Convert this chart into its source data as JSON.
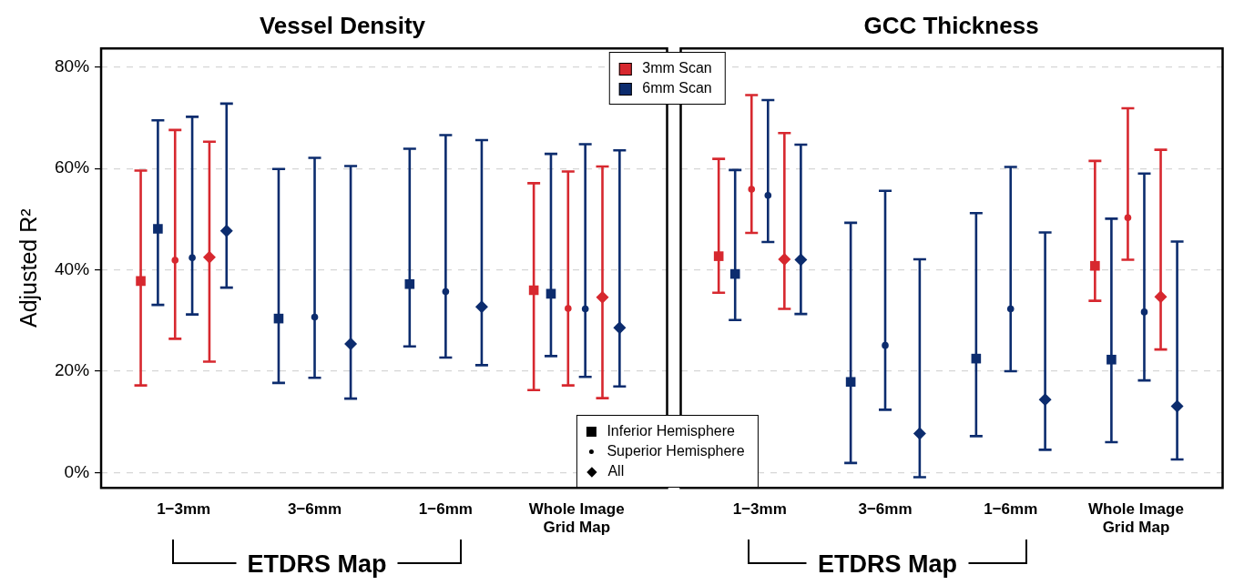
{
  "chart_data": [
    {
      "type": "scatter",
      "title": "Vessel Density",
      "ylabel": "Adjusted R²",
      "xlabel": "ETDRS Map",
      "categories": [
        "1−3mm",
        "3−6mm",
        "1−6mm",
        "Whole Image Grid Map"
      ],
      "ylim": [
        -3,
        83.7
      ],
      "yticks": [
        {
          "value": 0,
          "label": "0%"
        },
        {
          "value": 20,
          "label": "20%"
        },
        {
          "value": 40,
          "label": "40%"
        },
        {
          "value": 60,
          "label": "60%"
        },
        {
          "value": 80,
          "label": "80%"
        }
      ],
      "grid": "y",
      "legend": "top right",
      "annotations": [
        "Inferior Hemisphere",
        "Superior Hemisphere",
        "All"
      ],
      "series": [
        {
          "name": "3mm Scan",
          "color": "#d7282f",
          "marker": "square",
          "values": [
            37.8,
            null,
            null,
            36.0
          ],
          "errors": [
            [
              17.2,
              59.6
            ],
            null,
            null,
            [
              16.3,
              57.1
            ]
          ]
        },
        {
          "name": "6mm Scan",
          "color": "#0c2c6e",
          "marker": "square",
          "values": [
            48.1,
            30.4,
            37.2,
            35.3
          ],
          "errors": [
            [
              33.1,
              69.5
            ],
            [
              17.7,
              59.9
            ],
            [
              24.9,
              63.9
            ],
            [
              23.0,
              62.9
            ]
          ]
        },
        {
          "color": "#d7282f",
          "marker": "circle",
          "values": [
            41.9,
            null,
            null,
            32.4
          ],
          "errors": [
            [
              26.4,
              67.6
            ],
            null,
            null,
            [
              17.2,
              59.4
            ]
          ]
        },
        {
          "color": "#0c2c6e",
          "marker": "circle",
          "values": [
            42.4,
            30.7,
            35.7,
            32.3
          ],
          "errors": [
            [
              31.2,
              70.2
            ],
            [
              18.7,
              62.1
            ],
            [
              22.7,
              66.6
            ],
            [
              18.9,
              64.8
            ]
          ]
        },
        {
          "color": "#d7282f",
          "marker": "diamond",
          "values": [
            42.5,
            null,
            null,
            34.6
          ],
          "errors": [
            [
              21.9,
              65.3
            ],
            null,
            null,
            [
              14.7,
              60.4
            ]
          ]
        },
        {
          "color": "#0c2c6e",
          "marker": "diamond",
          "values": [
            47.7,
            25.4,
            32.7,
            28.6
          ],
          "errors": [
            [
              36.5,
              72.8
            ],
            [
              14.6,
              60.5
            ],
            [
              21.2,
              65.6
            ],
            [
              17.0,
              63.6
            ]
          ]
        }
      ]
    },
    {
      "type": "scatter",
      "title": "GCC Thickness",
      "xlabel": "ETDRS Map",
      "categories": [
        "1−3mm",
        "3−6mm",
        "1−6mm",
        "Whole Image Grid Map"
      ],
      "ylim": [
        -3,
        83.7
      ],
      "yticks": [
        0,
        20,
        40,
        60,
        80
      ],
      "grid": "y",
      "tick_labels": "x",
      "series": [
        {
          "color": "#d7282f",
          "marker": "square",
          "values": [
            42.7,
            null,
            null,
            40.8
          ],
          "errors": [
            [
              35.5,
              61.9
            ],
            null,
            null,
            [
              33.9,
              61.5
            ]
          ]
        },
        {
          "color": "#0c2c6e",
          "marker": "square",
          "values": [
            39.2,
            17.9,
            22.5,
            22.3
          ],
          "errors": [
            [
              30.1,
              59.7
            ],
            [
              1.9,
              49.3
            ],
            [
              7.2,
              51.2
            ],
            [
              6.0,
              50.1
            ]
          ]
        },
        {
          "color": "#d7282f",
          "marker": "circle",
          "values": [
            55.9,
            null,
            null,
            50.3
          ],
          "errors": [
            [
              47.3,
              74.5
            ],
            null,
            null,
            [
              42.0,
              71.9
            ]
          ]
        },
        {
          "color": "#0c2c6e",
          "marker": "circle",
          "values": [
            54.7,
            25.1,
            32.3,
            31.7
          ],
          "errors": [
            [
              45.5,
              73.5
            ],
            [
              12.4,
              55.6
            ],
            [
              20.0,
              60.3
            ],
            [
              18.2,
              59.0
            ]
          ]
        },
        {
          "color": "#d7282f",
          "marker": "diamond",
          "values": [
            42.1,
            null,
            null,
            34.7
          ],
          "errors": [
            [
              32.3,
              67.0
            ],
            null,
            null,
            [
              24.3,
              63.7
            ]
          ]
        },
        {
          "color": "#0c2c6e",
          "marker": "diamond",
          "values": [
            42.0,
            7.7,
            14.4,
            13.1
          ],
          "errors": [
            [
              31.3,
              64.7
            ],
            [
              -0.9,
              42.1
            ],
            [
              4.5,
              47.4
            ],
            [
              2.6,
              45.6
            ]
          ]
        }
      ]
    }
  ]
}
